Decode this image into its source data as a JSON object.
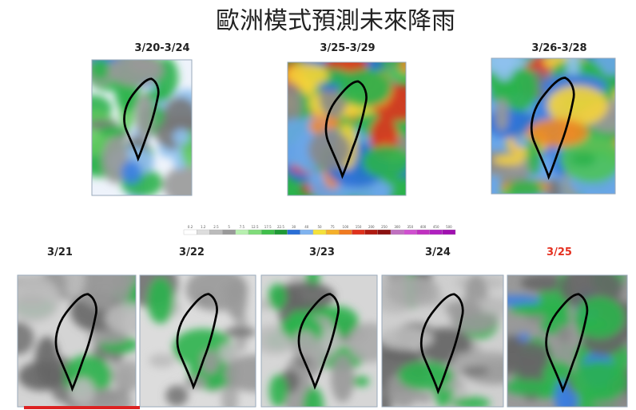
{
  "title": "歐洲模式預測未來降雨",
  "top_maps": [
    {
      "label": "3/20-3/24"
    },
    {
      "label": "3/25-3/29"
    },
    {
      "label": "3/26-3/28"
    }
  ],
  "color_scale": [
    "0.2",
    "1.2",
    "2.5",
    "5",
    "7.5",
    "12.5",
    "17.5",
    "22.5",
    "30",
    "40",
    "50",
    "75",
    "100",
    "150",
    "200",
    "250",
    "300",
    "350",
    "400",
    "450",
    "500"
  ],
  "bottom_maps": [
    {
      "label": "3/21"
    },
    {
      "label": "3/22"
    },
    {
      "label": "3/23"
    },
    {
      "label": "3/24"
    },
    {
      "label": "3/25"
    }
  ]
}
